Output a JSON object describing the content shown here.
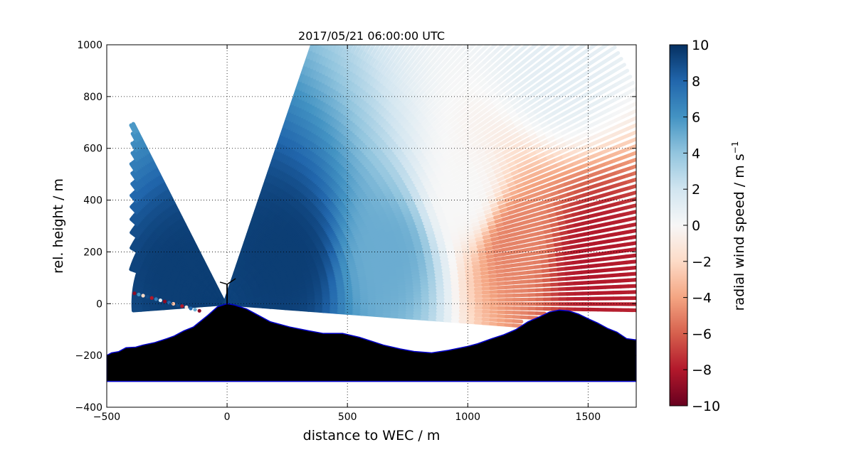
{
  "chart_data": {
    "type": "scatter",
    "title": "2017/05/21 06:00:00 UTC",
    "xlabel": "distance to WEC / m",
    "ylabel": "rel. height / m",
    "xlim": [
      -500,
      1700
    ],
    "ylim": [
      -400,
      1000
    ],
    "x_ticks": [
      -500,
      0,
      500,
      1000,
      1500
    ],
    "y_ticks": [
      -400,
      -200,
      0,
      200,
      400,
      600,
      800,
      1000
    ],
    "grid": true,
    "grid_style": "dotted",
    "colormap": "RdBu",
    "colorbar": {
      "label": "radial wind speed / m s",
      "label_superscript": "−1",
      "range": [
        -10,
        10
      ],
      "ticks": [
        -10,
        -8,
        -6,
        -4,
        -2,
        0,
        2,
        4,
        6,
        8,
        10
      ],
      "tick_labels": [
        "−10",
        "−8",
        "−6",
        "−4",
        "−2",
        "0",
        "2",
        "4",
        "6",
        "8",
        "10"
      ]
    },
    "scan": {
      "origin": [
        -10,
        0
      ],
      "elevation_deg_range": [
        -4,
        70
      ],
      "sampled_regions": [
        {
          "x_range": [
            50,
            450
          ],
          "y_range": [
            50,
            300
          ],
          "radial_wind_speed": 9.5
        },
        {
          "x_range": [
            450,
            900
          ],
          "y_range": [
            0,
            400
          ],
          "radial_wind_speed": 5
        },
        {
          "x_range": [
            950,
            1050
          ],
          "y_range": [
            0,
            800
          ],
          "radial_wind_speed": 0
        },
        {
          "x_range": [
            1050,
            1350
          ],
          "y_range": [
            0,
            500
          ],
          "radial_wind_speed": -5
        },
        {
          "x_range": [
            1350,
            1700
          ],
          "y_range": [
            50,
            300
          ],
          "radial_wind_speed": -8
        },
        {
          "x_range": [
            1100,
            1700
          ],
          "y_range": [
            800,
            1000
          ],
          "radial_wind_speed": 1
        }
      ]
    },
    "terrain": {
      "x": [
        -500,
        -480,
        -450,
        -420,
        -380,
        -350,
        -300,
        -250,
        -220,
        -180,
        -140,
        -120,
        -80,
        -40,
        0,
        30,
        80,
        130,
        180,
        260,
        340,
        400,
        480,
        550,
        650,
        720,
        780,
        850,
        920,
        1000,
        1040,
        1100,
        1150,
        1200,
        1250,
        1300,
        1340,
        1380,
        1420,
        1460,
        1500,
        1540,
        1580,
        1620,
        1660,
        1700
      ],
      "y": [
        -200,
        -190,
        -185,
        -170,
        -168,
        -160,
        -150,
        -135,
        -125,
        -105,
        -90,
        -75,
        -45,
        -12,
        0,
        -5,
        -20,
        -45,
        -70,
        -90,
        -105,
        -115,
        -115,
        -130,
        -160,
        -175,
        -185,
        -190,
        -180,
        -165,
        -155,
        -135,
        -120,
        -100,
        -70,
        -50,
        -32,
        -25,
        -28,
        -40,
        -58,
        -75,
        -95,
        -110,
        -135,
        -140
      ],
      "bottom": -300
    },
    "wec": {
      "x": 0,
      "hub_height": 75
    }
  }
}
